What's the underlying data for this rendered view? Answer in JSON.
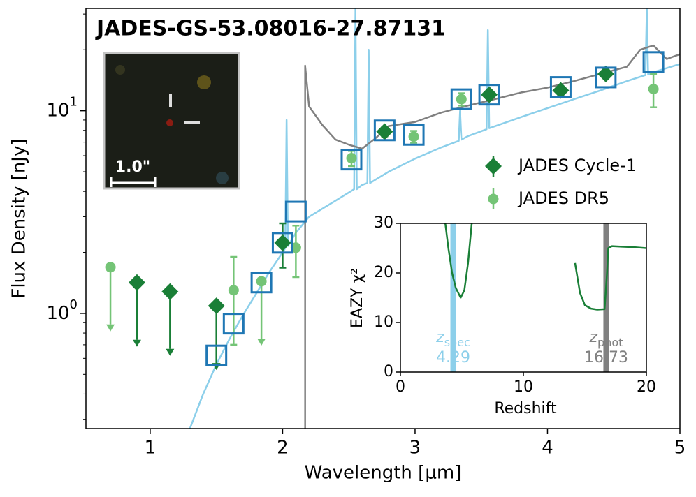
{
  "chart_data": [
    {
      "type": "scatter",
      "title": "JADES-GS-53.08016-27.87131",
      "xlabel": "Wavelength [μm]",
      "ylabel": "Flux Density [nJy]",
      "image_scale_label": "1.0\"",
      "xlim": [
        0.515,
        5
      ],
      "xticks": [
        1,
        2,
        3,
        4,
        5
      ],
      "ylim": [
        0.27,
        32
      ],
      "log_y": true,
      "yticks": [
        {
          "value": 1,
          "label": "10",
          "exponent": "0"
        },
        {
          "value": 10,
          "label": "10",
          "exponent": "1"
        }
      ],
      "yminorticks": [
        0.3,
        0.4,
        0.5,
        0.6,
        0.7,
        0.8,
        0.9,
        2,
        3,
        4,
        5,
        6,
        7,
        8,
        9,
        20,
        30
      ],
      "legend": "right",
      "series": [
        {
          "name": "JADES Cycle-1",
          "marker": "diamond",
          "color": "#1a7f37",
          "x": [
            0.9,
            1.15,
            1.5,
            2.0,
            2.77,
            3.56,
            4.1,
            4.44
          ],
          "values": [
            1.42,
            1.28,
            1.09,
            2.23,
            7.88,
            12.0,
            12.6,
            15.2
          ],
          "errors": [
            null,
            null,
            null,
            0.55,
            0.4,
            0.6,
            0.6,
            0.7
          ],
          "upper_limit": [
            true,
            true,
            true,
            false,
            false,
            false,
            false,
            false
          ]
        },
        {
          "name": "JADES DR5",
          "marker": "circle",
          "color": "#74c476",
          "x": [
            0.7,
            1.63,
            1.84,
            2.1,
            2.52,
            2.99,
            3.35,
            4.8
          ],
          "values": [
            1.69,
            1.3,
            1.44,
            2.11,
            5.83,
            7.45,
            11.4,
            12.8
          ],
          "errors": [
            null,
            0.6,
            null,
            0.6,
            0.5,
            0.5,
            0.8,
            2.4
          ],
          "upper_limit": [
            true,
            false,
            true,
            false,
            false,
            false,
            false,
            false
          ]
        },
        {
          "marker": "square",
          "color": "#1f77b4",
          "x": [
            1.5,
            1.63,
            1.84,
            2.0,
            2.1,
            2.52,
            2.77,
            2.99,
            3.35,
            3.56,
            4.1,
            4.44,
            4.8
          ],
          "values": [
            0.62,
            0.89,
            1.42,
            2.23,
            3.18,
            5.74,
            8.0,
            7.6,
            11.4,
            12.0,
            13.1,
            14.6,
            17.4
          ]
        },
        {
          "marker": "line",
          "color": "#8ccfea",
          "x": [
            1.3,
            1.4,
            1.5,
            1.6,
            1.7,
            1.8,
            1.9,
            2.0,
            2.02,
            2.03,
            2.04,
            2.1,
            2.2,
            2.4,
            2.54,
            2.55,
            2.56,
            2.6,
            2.64,
            2.65,
            2.66,
            2.8,
            3.0,
            3.2,
            3.33,
            3.34,
            3.35,
            3.4,
            3.54,
            3.55,
            3.56,
            3.8,
            4.0,
            4.2,
            4.4,
            4.6,
            4.74,
            4.75,
            4.76,
            4.8,
            5.0
          ],
          "values": [
            0.27,
            0.4,
            0.56,
            0.75,
            0.98,
            1.25,
            1.6,
            2.0,
            2.1,
            9,
            2.15,
            2.5,
            3.0,
            3.6,
            4.1,
            32,
            4.1,
            4.3,
            4.4,
            20,
            4.4,
            5.0,
            5.8,
            6.6,
            7.1,
            10,
            7.2,
            7.5,
            8.1,
            25,
            8.2,
            9.3,
            10.3,
            11.4,
            12.6,
            14,
            15,
            32,
            15.1,
            15.5,
            17
          ]
        },
        {
          "marker": "line",
          "color": "#808080",
          "x": [
            2.17,
            2.17,
            2.2,
            2.3,
            2.4,
            2.5,
            2.6,
            2.7,
            2.8,
            3.0,
            3.2,
            3.4,
            3.6,
            3.8,
            4.0,
            4.2,
            4.4,
            4.6,
            4.7,
            4.8,
            4.9,
            5.0
          ],
          "values": [
            0.27,
            16.7,
            10.5,
            8.5,
            7.2,
            6.8,
            6.5,
            7.3,
            8.4,
            8.8,
            9.8,
            10.6,
            11.4,
            12.3,
            13,
            14,
            15.2,
            16.5,
            20,
            21,
            18,
            19
          ]
        }
      ]
    },
    {
      "type": "line",
      "xlabel": "Redshift",
      "ylabel": "EAZY χ²",
      "xlim": [
        0,
        20
      ],
      "xticks": [
        0,
        10,
        20
      ],
      "ylim": [
        0,
        30
      ],
      "yticks": [
        0,
        10,
        20,
        30
      ],
      "series": [
        {
          "color": "#1a7f37",
          "x": [
            3.65,
            3.9,
            4.2,
            4.5,
            4.9,
            5.2,
            5.5,
            5.8,
            13.9,
            14.2,
            14.6,
            15.0,
            15.5,
            16.0,
            16.6,
            16.8,
            16.9,
            17.2,
            18,
            19,
            20
          ],
          "values": [
            30,
            25,
            20,
            17,
            15,
            16.5,
            22,
            30,
            null,
            22,
            16,
            13.5,
            12.8,
            12.6,
            12.7,
            20,
            25,
            25.4,
            25.3,
            25.2,
            25.0
          ]
        }
      ],
      "markers": [
        {
          "text": "z",
          "subscript": "spec",
          "value": 4.29,
          "color": "#8ccfea"
        },
        {
          "text": "z",
          "subscript": "phot",
          "value": 16.73,
          "color": "#808080"
        }
      ]
    }
  ]
}
